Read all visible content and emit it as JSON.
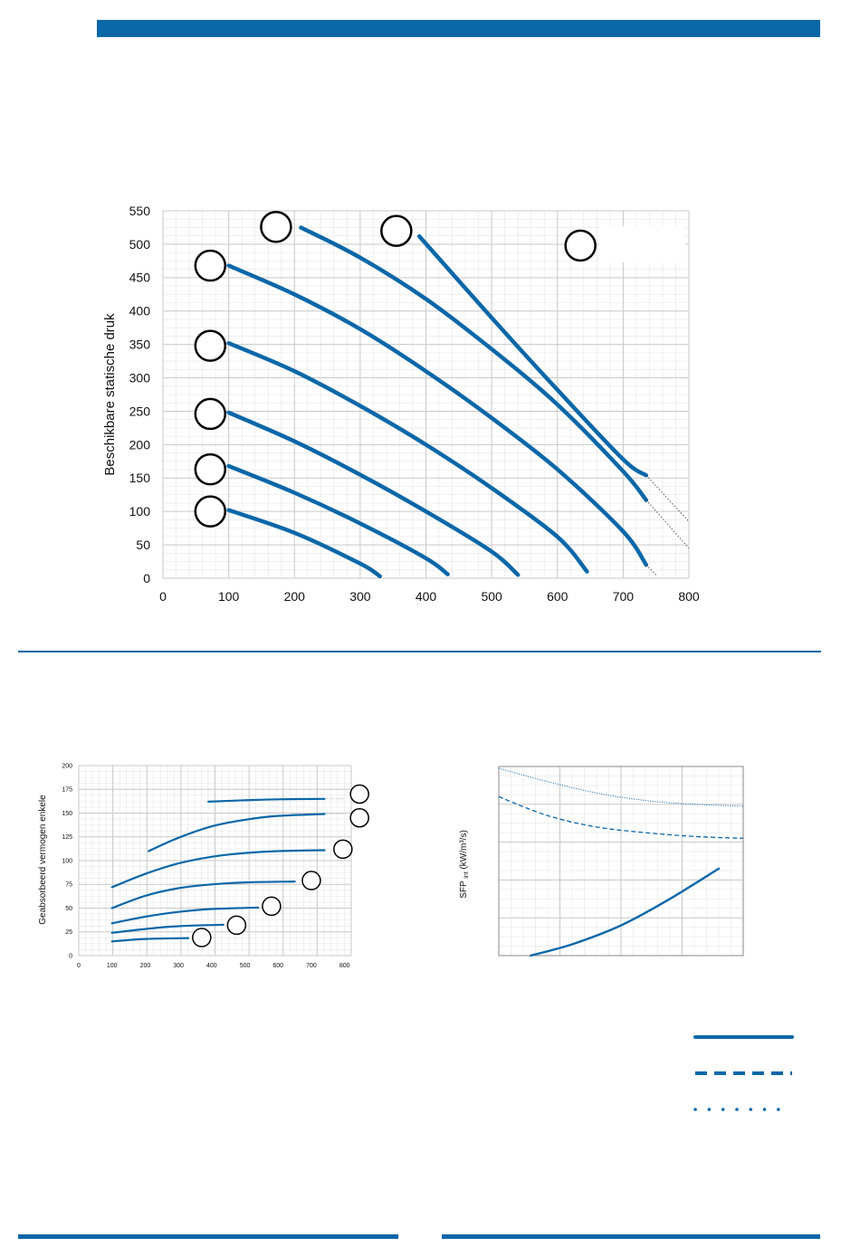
{
  "colors": {
    "brand": "#0a67a8",
    "grid_major": "#c9c9c9",
    "grid_minor": "#e6e6e6",
    "text": "#111111"
  },
  "chart_data": [
    {
      "type": "line",
      "ylabel": "Beschikbare statische druk",
      "xlabel": "",
      "xlim": [
        0,
        800
      ],
      "ylim": [
        0,
        550
      ],
      "xticks": [
        "0",
        "100",
        "200",
        "300",
        "400",
        "500",
        "600",
        "700",
        "800"
      ],
      "yticks": [
        "0",
        "50",
        "100",
        "150",
        "200",
        "250",
        "300",
        "350",
        "400",
        "450",
        "500",
        "550"
      ],
      "grid": true,
      "series": [
        {
          "x": [
            100,
            200,
            300,
            330
          ],
          "y": [
            102,
            68,
            22,
            3
          ]
        },
        {
          "x": [
            100,
            200,
            300,
            400,
            433
          ],
          "y": [
            168,
            128,
            82,
            30,
            6
          ]
        },
        {
          "x": [
            100,
            200,
            300,
            400,
            500,
            540
          ],
          "y": [
            248,
            205,
            155,
            100,
            40,
            5
          ]
        },
        {
          "x": [
            100,
            200,
            300,
            400,
            500,
            600,
            645
          ],
          "y": [
            352,
            310,
            258,
            200,
            135,
            62,
            10
          ]
        },
        {
          "x": [
            100,
            200,
            300,
            400,
            500,
            600,
            700,
            735
          ],
          "y": [
            468,
            425,
            373,
            310,
            240,
            163,
            70,
            20
          ]
        },
        {
          "x": [
            210,
            300,
            400,
            500,
            600,
            700,
            735
          ],
          "y": [
            525,
            480,
            418,
            343,
            260,
            160,
            117
          ]
        },
        {
          "x": [
            390,
            500,
            600,
            700,
            735
          ],
          "y": [
            512,
            390,
            282,
            178,
            154
          ]
        }
      ],
      "extrapolation": [
        {
          "x": [
            735,
            750
          ],
          "y": [
            20,
            5
          ]
        },
        {
          "x": [
            735,
            800
          ],
          "y": [
            117,
            45
          ]
        },
        {
          "x": [
            735,
            800
          ],
          "y": [
            154,
            85
          ]
        }
      ],
      "markers": [
        {
          "x": 72,
          "y": 100
        },
        {
          "x": 72,
          "y": 163
        },
        {
          "x": 72,
          "y": 246
        },
        {
          "x": 72,
          "y": 348
        },
        {
          "x": 72,
          "y": 468
        },
        {
          "x": 172,
          "y": 526
        },
        {
          "x": 355,
          "y": 520
        },
        {
          "x": 635,
          "y": 498
        }
      ]
    },
    {
      "type": "line",
      "ylabel": "Geabsorbeerd vermogen enkele",
      "xlabel": "",
      "xlim": [
        0,
        820
      ],
      "ylim": [
        0,
        200
      ],
      "xticks": [
        "0",
        "100",
        "200",
        "300",
        "400",
        "500",
        "600",
        "700",
        "800"
      ],
      "yticks": [
        "0",
        "25",
        "50",
        "75",
        "100",
        "125",
        "150",
        "175",
        "200"
      ],
      "grid": true,
      "series": [
        {
          "x": [
            100,
            200,
            330
          ],
          "y": [
            15,
            17.5,
            18.5
          ]
        },
        {
          "x": [
            100,
            200,
            300,
            435
          ],
          "y": [
            24,
            28,
            31,
            32.5
          ]
        },
        {
          "x": [
            100,
            200,
            300,
            400,
            540
          ],
          "y": [
            34,
            41,
            46,
            49,
            50.5
          ]
        },
        {
          "x": [
            100,
            200,
            300,
            400,
            500,
            650
          ],
          "y": [
            50,
            63,
            71,
            75,
            77,
            78
          ]
        },
        {
          "x": [
            100,
            200,
            300,
            400,
            500,
            600,
            740
          ],
          "y": [
            72,
            86,
            97,
            104,
            108,
            110,
            111
          ]
        },
        {
          "x": [
            210,
            300,
            400,
            500,
            600,
            740
          ],
          "y": [
            110,
            124,
            136,
            143,
            147,
            149
          ]
        },
        {
          "x": [
            390,
            500,
            600,
            740
          ],
          "y": [
            162,
            163.5,
            164.5,
            165
          ]
        }
      ],
      "extrapolation": [
        {
          "x": [
            740,
            800
          ],
          "y": [
            149,
            149
          ]
        },
        {
          "x": [
            740,
            800
          ],
          "y": [
            165,
            165
          ]
        }
      ],
      "markers": [
        {
          "x": 370,
          "y": 19
        },
        {
          "x": 475,
          "y": 32
        },
        {
          "x": 580,
          "y": 52
        },
        {
          "x": 700,
          "y": 79
        },
        {
          "x": 795,
          "y": 112
        },
        {
          "x": 845,
          "y": 145
        },
        {
          "x": 845,
          "y": 170
        }
      ]
    },
    {
      "type": "line",
      "ylabel": "SFP",
      "ylabel_sub": "int",
      "ylabel_unit": "(kW/m³/s)",
      "xlabel": "",
      "xlim": [
        0,
        1
      ],
      "ylim": [
        0,
        1
      ],
      "grid": true,
      "series": [
        {
          "style": "solid",
          "x": [
            0.13,
            0.3,
            0.5,
            0.7,
            0.9
          ],
          "y": [
            0.0,
            0.06,
            0.16,
            0.3,
            0.46
          ]
        },
        {
          "style": "dashed",
          "x": [
            0.0,
            0.2,
            0.4,
            0.6,
            0.8,
            1.0
          ],
          "y": [
            0.84,
            0.74,
            0.68,
            0.65,
            0.63,
            0.62
          ]
        },
        {
          "style": "dotted",
          "x": [
            0.0,
            0.2,
            0.4,
            0.6,
            0.8,
            1.0
          ],
          "y": [
            0.99,
            0.92,
            0.86,
            0.82,
            0.8,
            0.79
          ]
        }
      ]
    }
  ],
  "legend": [
    {
      "style": "solid"
    },
    {
      "style": "dashed"
    },
    {
      "style": "dotted"
    }
  ]
}
